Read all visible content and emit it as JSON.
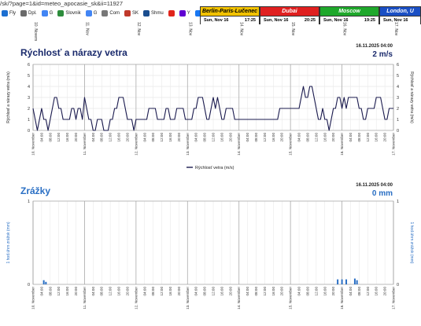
{
  "browser": {
    "url": "/sk/?page=1&id=meteo_apocasie_sk&ii=11927",
    "bookmarks": [
      {
        "label": "Fly",
        "color": "#1c6fd1"
      },
      {
        "label": "Dpl.",
        "color": "#6a6a6a"
      },
      {
        "label": "G",
        "color": "#4285f4"
      },
      {
        "label": "Slovnik",
        "color": "#2d8c3c"
      },
      {
        "label": "G",
        "color": "#4285f4"
      },
      {
        "label": "Com",
        "color": "#777"
      },
      {
        "label": "SK",
        "color": "#c0392b"
      },
      {
        "label": "Shmu",
        "color": "#1a4d8f"
      },
      {
        "label": "",
        "color": "#e1251b"
      },
      {
        "label": "Y",
        "color": "#6001d2"
      },
      {
        "label": "",
        "color": "#1877f2"
      },
      {
        "label": "",
        "color": "#ff0000"
      },
      {
        "label": "Y",
        "color": "#6001d2"
      }
    ]
  },
  "clocks": [
    {
      "name": "Berlin-Paris-Lučenec",
      "date": "Sun, Nov 16",
      "time": "17:25",
      "bg": "#f2c200",
      "color": "#000"
    },
    {
      "name": "Dubai",
      "date": "Sun, Nov 16",
      "time": "20:25",
      "bg": "#e02020",
      "color": "#fff"
    },
    {
      "name": "Moscow",
      "date": "Sun, Nov 16",
      "time": "19:25",
      "bg": "#1fa82b",
      "color": "#fff"
    },
    {
      "name": "London, U",
      "date": "Sun, Nov 16",
      "time": "",
      "bg": "#1a4fc4",
      "color": "#fff"
    }
  ],
  "top_ticks": [
    "10. November",
    "11. Nov",
    "12. Nov",
    "13. Nov",
    "14. Nov",
    "15. Nov",
    "16. Nov",
    "17. Nov"
  ],
  "wind": {
    "title": "Rýchlosť a nárazy vetra",
    "timestamp": "16.11.2025 04:00",
    "current": "2 m/s",
    "ylabel": "Rýchlosť a nárazy vetra (m/s)",
    "legend": "Rýchlosť vetra (m/s)",
    "color_title": "#1a2a6c",
    "color_line": "#1a1a4e"
  },
  "precip": {
    "title": "Zrážky",
    "timestamp": "16.11.2025 04:00",
    "current": "0 mm",
    "ylabel": "1 hod.úhrn zrážok (mm)",
    "color_title": "#2a6fc4",
    "color_bar": "#2a6fc4"
  },
  "chart_data": [
    {
      "type": "line",
      "title": "Rýchlosť a nárazy vetra",
      "ylabel": "Rýchlosť a nárazy vetra (m/s)",
      "ylim": [
        0,
        6
      ],
      "x_tick_labels": [
        "10. November",
        "04:00",
        "08:00",
        "12:00",
        "16:00",
        "20:00",
        "11. November",
        "04:00",
        "08:00",
        "12:00",
        "16:00",
        "20:00",
        "12. November",
        "04:00",
        "08:00",
        "12:00",
        "16:00",
        "20:00",
        "13. November",
        "04:00",
        "08:00",
        "12:00",
        "16:00",
        "20:00",
        "14. November",
        "04:00",
        "08:00",
        "12:00",
        "16:00",
        "20:00",
        "15. November",
        "04:00",
        "08:00",
        "12:00",
        "16:00",
        "20:00",
        "16. November",
        "04:00",
        "08:00",
        "12:00",
        "16:00",
        "20:00",
        "17. November"
      ],
      "series": [
        {
          "name": "Rýchlosť vetra (m/s)",
          "x_hours": [
            0,
            1,
            2,
            3,
            4,
            5,
            6,
            7,
            8,
            9,
            10,
            11,
            12,
            13,
            14,
            15,
            16,
            17,
            18,
            19,
            20,
            21,
            22,
            23,
            24,
            25,
            26,
            27,
            28,
            29,
            30,
            31,
            32,
            33,
            34,
            35,
            36,
            37,
            38,
            39,
            40,
            41,
            42,
            43,
            44,
            45,
            46,
            47,
            48,
            49,
            50,
            51,
            52,
            53,
            54,
            55,
            56,
            57,
            58,
            59,
            60,
            61,
            62,
            63,
            64,
            65,
            66,
            67,
            68,
            69,
            70,
            71,
            72,
            73,
            74,
            75,
            76,
            77,
            78,
            79,
            80,
            81,
            82,
            83,
            84,
            85,
            86,
            87,
            88,
            89,
            90,
            91,
            92,
            93,
            94,
            95,
            96,
            97,
            98,
            99,
            100,
            101,
            102,
            103,
            104,
            105,
            106,
            107,
            108,
            109,
            110,
            111,
            112,
            113,
            114,
            115,
            116,
            117,
            118,
            119,
            120,
            121,
            122,
            123,
            124,
            125,
            126,
            127,
            128,
            129,
            130,
            131,
            132,
            133,
            134,
            135,
            136,
            137,
            138,
            139,
            140,
            141,
            142,
            143,
            144,
            145,
            146,
            147,
            148,
            149,
            150,
            151,
            152,
            153,
            154,
            155,
            156,
            157,
            158,
            159,
            160,
            161,
            162,
            163,
            164,
            165,
            166,
            167,
            168
          ],
          "values": [
            2,
            1,
            0,
            1,
            2,
            1,
            1,
            0,
            1,
            2,
            3,
            3,
            2,
            2,
            1,
            1,
            1,
            1,
            2,
            2,
            1,
            2,
            2,
            1,
            3,
            2,
            1,
            1,
            0,
            0,
            1,
            1,
            1,
            0,
            0,
            0,
            1,
            1,
            2,
            2,
            3,
            3,
            3,
            2,
            1,
            1,
            1,
            0,
            1,
            1,
            1,
            1,
            1,
            1,
            2,
            2,
            2,
            2,
            1,
            1,
            1,
            1,
            2,
            2,
            1,
            1,
            1,
            2,
            2,
            2,
            2,
            1,
            1,
            1,
            1,
            2,
            2,
            3,
            3,
            3,
            2,
            1,
            1,
            2,
            3,
            2,
            3,
            2,
            1,
            1,
            2,
            2,
            2,
            2,
            1,
            1,
            1,
            1,
            1,
            1,
            1,
            1,
            1,
            1,
            1,
            1,
            1,
            1,
            1,
            1,
            1,
            1,
            1,
            1,
            1,
            2,
            2,
            2,
            2,
            2,
            2,
            2,
            2,
            2,
            2,
            3,
            4,
            3,
            3,
            4,
            4,
            3,
            2,
            1,
            1,
            2,
            1,
            1,
            0,
            1,
            2,
            2,
            3,
            3,
            2,
            3,
            2,
            3,
            3,
            3,
            3,
            3,
            2,
            2,
            1,
            1,
            2,
            2,
            2,
            2,
            3,
            3,
            3,
            2,
            1,
            1,
            2,
            2,
            2
          ]
        }
      ]
    },
    {
      "type": "bar",
      "title": "Zrážky",
      "ylabel": "1 hod.úhrn zrážok (mm)",
      "ylim": [
        0,
        1
      ],
      "series": [
        {
          "name": "1 hod.úhrn zrážok (mm)",
          "x_hours": [
            5,
            6,
            142,
            144,
            146,
            150,
            151
          ],
          "values": [
            0.05,
            0.03,
            0.06,
            0.06,
            0.06,
            0.07,
            0.05
          ]
        }
      ]
    }
  ]
}
